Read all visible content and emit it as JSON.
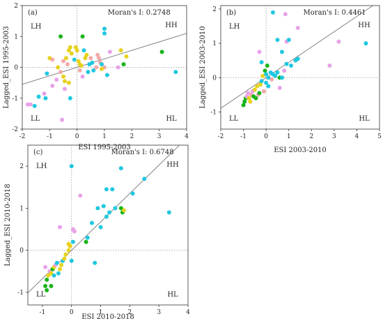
{
  "palette": {
    "cyan": "#1ec8e0",
    "yellow": "#e6d21e",
    "green": "#18b418",
    "pink": "#f2aaa8",
    "violet": "#e8a2e8",
    "axis": "#333333",
    "regression": "#777777",
    "dotted": "#999999"
  },
  "chart_data": [
    {
      "type": "scatter",
      "panel_label": "(a)",
      "moran": "Moran's I: 0.2748",
      "xlabel": "ESI 1995-2003",
      "ylabel": "Lagged_ESI 1995-2003",
      "xlim": [
        -2,
        4
      ],
      "ylim": [
        -2,
        2
      ],
      "xticks": [
        -2,
        -1,
        0,
        1,
        2,
        3,
        4
      ],
      "yticks": [
        -2,
        -1,
        0,
        1,
        2
      ],
      "quadrants": {
        "LH": "LH",
        "HH": "HH",
        "LL": "LL",
        "HL": "HL"
      },
      "regression": {
        "slope": 0.2748,
        "intercept": 0.0
      },
      "points": [
        [
          -1.8,
          -1.2,
          "violet"
        ],
        [
          -1.7,
          -1.2,
          "violet"
        ],
        [
          -1.55,
          -1.25,
          "cyan"
        ],
        [
          -1.4,
          -0.95,
          "cyan"
        ],
        [
          -1.2,
          -0.85,
          "violet"
        ],
        [
          -1.1,
          -0.2,
          "cyan"
        ],
        [
          -1.0,
          0.3,
          "yellow"
        ],
        [
          -1.15,
          -1.0,
          "cyan"
        ],
        [
          -0.9,
          0.25,
          "pink"
        ],
        [
          -0.9,
          -0.6,
          "violet"
        ],
        [
          -0.75,
          -0.4,
          "violet"
        ],
        [
          -0.7,
          0.0,
          "yellow"
        ],
        [
          -0.6,
          -0.15,
          "pink"
        ],
        [
          -0.5,
          -0.3,
          "yellow"
        ],
        [
          -0.45,
          -0.45,
          "yellow"
        ],
        [
          -0.5,
          0.2,
          "pink"
        ],
        [
          -0.4,
          0.3,
          "yellow"
        ],
        [
          -0.35,
          0.1,
          "pink"
        ],
        [
          -0.3,
          0.55,
          "yellow"
        ],
        [
          -0.25,
          0.65,
          "yellow"
        ],
        [
          -0.2,
          0.45,
          "yellow"
        ],
        [
          -0.1,
          0.25,
          "cyan"
        ],
        [
          -0.05,
          0.65,
          "yellow"
        ],
        [
          0.0,
          0.55,
          "yellow"
        ],
        [
          0.05,
          0.2,
          "yellow"
        ],
        [
          0.1,
          -0.1,
          "pink"
        ],
        [
          0.1,
          0.1,
          "yellow"
        ],
        [
          0.15,
          0.05,
          "yellow"
        ],
        [
          0.2,
          -0.3,
          "violet"
        ],
        [
          0.25,
          0.55,
          "cyan"
        ],
        [
          0.3,
          0.3,
          "yellow"
        ],
        [
          0.4,
          -0.15,
          "cyan"
        ],
        [
          0.45,
          0.1,
          "cyan"
        ],
        [
          0.5,
          0.3,
          "pink"
        ],
        [
          0.55,
          0.15,
          "cyan"
        ],
        [
          0.6,
          -0.1,
          "cyan"
        ],
        [
          0.7,
          0.0,
          "pink"
        ],
        [
          0.75,
          0.4,
          "pink"
        ],
        [
          0.8,
          0.3,
          "pink"
        ],
        [
          0.85,
          0.15,
          "pink"
        ],
        [
          0.9,
          0.1,
          "cyan"
        ],
        [
          1.0,
          0.0,
          "pink"
        ],
        [
          1.0,
          1.1,
          "cyan"
        ],
        [
          1.0,
          1.25,
          "cyan"
        ],
        [
          1.1,
          -0.25,
          "cyan"
        ],
        [
          1.2,
          0.5,
          "violet"
        ],
        [
          1.5,
          0.0,
          "violet"
        ],
        [
          1.6,
          0.55,
          "yellow"
        ],
        [
          1.7,
          0.1,
          "green"
        ],
        [
          1.8,
          0.35,
          "yellow"
        ],
        [
          3.1,
          0.5,
          "green"
        ],
        [
          3.6,
          -0.15,
          "cyan"
        ],
        [
          -0.45,
          -0.7,
          "violet"
        ],
        [
          -0.6,
          1.0,
          "green"
        ],
        [
          -0.25,
          -1.0,
          "cyan"
        ],
        [
          -0.3,
          -0.5,
          "yellow"
        ],
        [
          0.2,
          1.0,
          "green"
        ],
        [
          -0.55,
          -1.7,
          "violet"
        ],
        [
          0.9,
          -0.05,
          "yellow"
        ],
        [
          0.35,
          0.4,
          "yellow"
        ]
      ]
    },
    {
      "type": "scatter",
      "panel_label": "(b)",
      "moran": "Moran's I: 0.4461",
      "xlabel": "ESI 2003-2010",
      "ylabel": "Lagged_ESI 2003-2010",
      "xlim": [
        -2,
        5
      ],
      "ylim": [
        -1.5,
        2.1
      ],
      "xticks": [
        -2,
        -1,
        0,
        1,
        2,
        3,
        4,
        5
      ],
      "yticks": [
        -1,
        0,
        1,
        2
      ],
      "quadrants": {
        "LH": "LH",
        "HH": "HH",
        "LL": "LL",
        "HL": "HL"
      },
      "regression": {
        "slope": 0.4461,
        "intercept": 0.0
      },
      "points": [
        [
          -1.0,
          -0.8,
          "green"
        ],
        [
          -0.95,
          -0.7,
          "green"
        ],
        [
          -0.9,
          -0.6,
          "green"
        ],
        [
          -0.85,
          -0.55,
          "violet"
        ],
        [
          -0.8,
          -0.45,
          "violet"
        ],
        [
          -0.75,
          -0.6,
          "yellow"
        ],
        [
          -0.7,
          -0.7,
          "yellow"
        ],
        [
          -0.65,
          -0.5,
          "pink"
        ],
        [
          -0.6,
          -0.4,
          "violet"
        ],
        [
          -0.55,
          -0.55,
          "green"
        ],
        [
          -0.5,
          -0.35,
          "yellow"
        ],
        [
          -0.45,
          -0.6,
          "green"
        ],
        [
          -0.4,
          -0.25,
          "yellow"
        ],
        [
          -0.35,
          -0.5,
          "pink"
        ],
        [
          -0.3,
          -0.45,
          "green"
        ],
        [
          -0.25,
          -0.2,
          "yellow"
        ],
        [
          -0.2,
          -0.1,
          "cyan"
        ],
        [
          -0.15,
          0.05,
          "yellow"
        ],
        [
          -0.1,
          -0.4,
          "pink"
        ],
        [
          -0.05,
          0.2,
          "green"
        ],
        [
          -0.2,
          0.45,
          "cyan"
        ],
        [
          -0.3,
          0.75,
          "violet"
        ],
        [
          0.0,
          0.1,
          "cyan"
        ],
        [
          0.05,
          0.35,
          "green"
        ],
        [
          0.0,
          -0.15,
          "cyan"
        ],
        [
          0.1,
          -0.25,
          "cyan"
        ],
        [
          0.1,
          0.0,
          "cyan"
        ],
        [
          0.2,
          0.15,
          "cyan"
        ],
        [
          0.25,
          -0.05,
          "pink"
        ],
        [
          0.3,
          0.1,
          "cyan"
        ],
        [
          0.4,
          0.05,
          "cyan"
        ],
        [
          0.5,
          0.15,
          "cyan"
        ],
        [
          0.6,
          0.0,
          "green"
        ],
        [
          0.7,
          0.0,
          "cyan"
        ],
        [
          0.8,
          0.2,
          "violet"
        ],
        [
          0.9,
          0.4,
          "cyan"
        ],
        [
          0.5,
          1.1,
          "cyan"
        ],
        [
          0.7,
          0.75,
          "cyan"
        ],
        [
          0.9,
          1.05,
          "violet"
        ],
        [
          1.0,
          1.1,
          "cyan"
        ],
        [
          1.1,
          0.35,
          "cyan"
        ],
        [
          1.3,
          0.5,
          "cyan"
        ],
        [
          1.4,
          0.55,
          "cyan"
        ],
        [
          1.4,
          1.45,
          "violet"
        ],
        [
          0.3,
          1.9,
          "cyan"
        ],
        [
          0.85,
          1.85,
          "violet"
        ],
        [
          2.8,
          0.35,
          "violet"
        ],
        [
          3.2,
          1.05,
          "violet"
        ],
        [
          4.4,
          1.0,
          "cyan"
        ],
        [
          0.6,
          -0.3,
          "violet"
        ]
      ]
    },
    {
      "type": "scatter",
      "panel_label": "(c)",
      "moran": "Moran's I: 0.6748",
      "xlabel": "ESI 2010-2018",
      "ylabel": "Lagged_ESI 2010-2018",
      "xlim": [
        -1.5,
        4
      ],
      "ylim": [
        -1.3,
        2.5
      ],
      "xticks": [
        -1,
        0,
        1,
        2,
        3,
        4
      ],
      "yticks": [
        -1,
        0,
        1,
        2
      ],
      "quadrants": {
        "LH": "LH",
        "HH": "HH",
        "LL": "LL",
        "HL": "HL"
      },
      "regression": {
        "slope": 0.6748,
        "intercept": 0.0
      },
      "points": [
        [
          -0.9,
          -0.85,
          "green"
        ],
        [
          -0.85,
          -0.7,
          "green"
        ],
        [
          -0.8,
          -0.6,
          "yellow"
        ],
        [
          -0.75,
          -0.5,
          "violet"
        ],
        [
          -0.9,
          -0.4,
          "violet"
        ],
        [
          -0.7,
          -0.55,
          "yellow"
        ],
        [
          -0.65,
          -0.45,
          "green"
        ],
        [
          -0.6,
          -0.4,
          "yellow"
        ],
        [
          -0.55,
          -0.35,
          "violet"
        ],
        [
          -0.5,
          -0.3,
          "cyan"
        ],
        [
          -0.45,
          -0.55,
          "cyan"
        ],
        [
          -0.4,
          -0.45,
          "yellow"
        ],
        [
          -0.35,
          -0.35,
          "yellow"
        ],
        [
          -0.3,
          -0.25,
          "cyan"
        ],
        [
          -0.25,
          -0.2,
          "yellow"
        ],
        [
          -0.2,
          -0.1,
          "yellow"
        ],
        [
          -0.1,
          0.0,
          "yellow"
        ],
        [
          -0.05,
          0.1,
          "yellow"
        ],
        [
          0.0,
          -0.25,
          "cyan"
        ],
        [
          0.05,
          0.5,
          "violet"
        ],
        [
          -0.1,
          0.15,
          "yellow"
        ],
        [
          -0.4,
          0.55,
          "violet"
        ],
        [
          0.05,
          0.2,
          "cyan"
        ],
        [
          0.1,
          0.45,
          "violet"
        ],
        [
          0.3,
          1.3,
          "violet"
        ],
        [
          0.5,
          0.2,
          "green"
        ],
        [
          0.55,
          0.3,
          "cyan"
        ],
        [
          0.7,
          0.65,
          "cyan"
        ],
        [
          0.8,
          -0.3,
          "cyan"
        ],
        [
          0.9,
          1.0,
          "cyan"
        ],
        [
          1.0,
          0.55,
          "cyan"
        ],
        [
          1.1,
          1.05,
          "cyan"
        ],
        [
          1.2,
          0.8,
          "cyan"
        ],
        [
          1.3,
          0.9,
          "cyan"
        ],
        [
          1.5,
          1.0,
          "cyan"
        ],
        [
          1.2,
          1.45,
          "cyan"
        ],
        [
          1.4,
          1.45,
          "cyan"
        ],
        [
          1.7,
          1.0,
          "green"
        ],
        [
          1.75,
          0.9,
          "green"
        ],
        [
          1.8,
          0.95,
          "yellow"
        ],
        [
          1.7,
          1.95,
          "cyan"
        ],
        [
          2.1,
          1.35,
          "cyan"
        ],
        [
          2.5,
          1.7,
          "cyan"
        ],
        [
          3.35,
          0.9,
          "cyan"
        ],
        [
          0.0,
          2.0,
          "cyan"
        ],
        [
          -0.85,
          -0.95,
          "green"
        ],
        [
          -0.7,
          -0.85,
          "green"
        ],
        [
          -0.6,
          -0.6,
          "cyan"
        ]
      ]
    }
  ]
}
